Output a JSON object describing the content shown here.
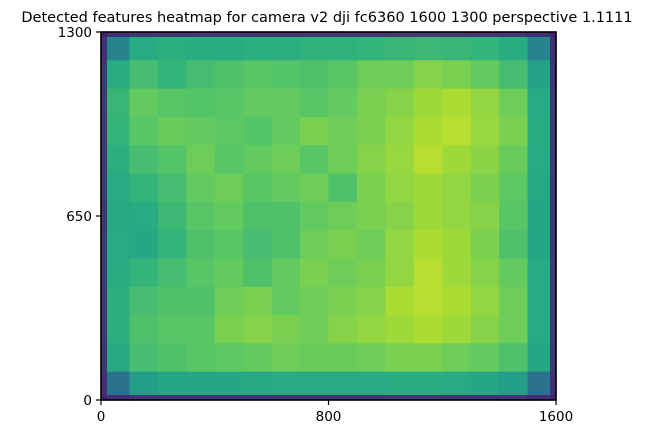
{
  "chart_data": {
    "type": "heatmap",
    "title": "Detected features heatmap for camera v2 dji fc6360 1600 1300 perspective 1.1111",
    "xlabel": "",
    "ylabel": "",
    "xlim": [
      0,
      1600
    ],
    "ylim": [
      0,
      1300
    ],
    "x_ticks": [
      0,
      800,
      1600
    ],
    "y_ticks": [
      0,
      650,
      1300
    ],
    "x_tick_labels": [
      "0",
      "800",
      "1600"
    ],
    "y_tick_labels": [
      "0",
      "650",
      "1300"
    ],
    "colormap": "viridis",
    "grid": false,
    "legend": "none",
    "grid_cols": 16,
    "grid_rows": 13,
    "x_centers": [
      50,
      150,
      250,
      350,
      450,
      550,
      650,
      750,
      850,
      950,
      1050,
      1150,
      1250,
      1350,
      1450,
      1550
    ],
    "y_centers": [
      1250,
      1150,
      1050,
      950,
      850,
      750,
      650,
      550,
      450,
      350,
      250,
      150,
      50
    ],
    "values": [
      [
        0.45,
        0.62,
        0.64,
        0.63,
        0.63,
        0.64,
        0.64,
        0.65,
        0.65,
        0.66,
        0.67,
        0.68,
        0.67,
        0.66,
        0.63,
        0.45
      ],
      [
        0.63,
        0.7,
        0.66,
        0.7,
        0.72,
        0.74,
        0.73,
        0.72,
        0.74,
        0.78,
        0.78,
        0.82,
        0.8,
        0.76,
        0.7,
        0.58
      ],
      [
        0.67,
        0.76,
        0.74,
        0.73,
        0.74,
        0.76,
        0.76,
        0.74,
        0.76,
        0.8,
        0.82,
        0.86,
        0.88,
        0.84,
        0.78,
        0.62
      ],
      [
        0.66,
        0.74,
        0.77,
        0.76,
        0.75,
        0.73,
        0.76,
        0.8,
        0.78,
        0.8,
        0.84,
        0.88,
        0.9,
        0.85,
        0.8,
        0.63
      ],
      [
        0.64,
        0.7,
        0.73,
        0.78,
        0.74,
        0.76,
        0.78,
        0.74,
        0.78,
        0.82,
        0.85,
        0.9,
        0.86,
        0.83,
        0.77,
        0.62
      ],
      [
        0.62,
        0.66,
        0.7,
        0.76,
        0.78,
        0.74,
        0.76,
        0.78,
        0.72,
        0.8,
        0.84,
        0.86,
        0.84,
        0.8,
        0.75,
        0.61
      ],
      [
        0.61,
        0.62,
        0.68,
        0.74,
        0.76,
        0.72,
        0.72,
        0.76,
        0.78,
        0.8,
        0.82,
        0.86,
        0.84,
        0.82,
        0.74,
        0.6
      ],
      [
        0.62,
        0.6,
        0.66,
        0.72,
        0.74,
        0.7,
        0.72,
        0.78,
        0.8,
        0.78,
        0.84,
        0.88,
        0.86,
        0.8,
        0.72,
        0.6
      ],
      [
        0.63,
        0.66,
        0.7,
        0.74,
        0.76,
        0.72,
        0.76,
        0.8,
        0.78,
        0.8,
        0.84,
        0.9,
        0.86,
        0.82,
        0.76,
        0.62
      ],
      [
        0.64,
        0.7,
        0.72,
        0.72,
        0.78,
        0.8,
        0.76,
        0.78,
        0.8,
        0.82,
        0.88,
        0.9,
        0.88,
        0.84,
        0.78,
        0.62
      ],
      [
        0.64,
        0.72,
        0.74,
        0.74,
        0.8,
        0.82,
        0.8,
        0.78,
        0.82,
        0.84,
        0.86,
        0.88,
        0.86,
        0.82,
        0.78,
        0.62
      ],
      [
        0.61,
        0.7,
        0.72,
        0.74,
        0.75,
        0.76,
        0.78,
        0.77,
        0.77,
        0.78,
        0.8,
        0.8,
        0.78,
        0.76,
        0.72,
        0.6
      ],
      [
        0.38,
        0.56,
        0.6,
        0.6,
        0.6,
        0.61,
        0.62,
        0.62,
        0.62,
        0.62,
        0.63,
        0.63,
        0.62,
        0.6,
        0.56,
        0.38
      ]
    ]
  }
}
